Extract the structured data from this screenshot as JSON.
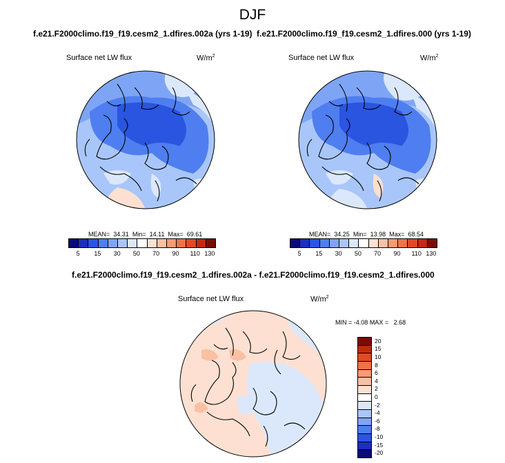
{
  "figure": {
    "title": "DJF",
    "left_panel": {
      "case_title": "f.e21.F2000climo.f19_f19.cesm2_1.dfires.002a (yrs 1-19)",
      "variable": "Surface net LW flux",
      "units": "W/m",
      "units_sup": "2",
      "stats": {
        "mean_label": "MEAN=",
        "mean": "34.31",
        "min_label": "Min=",
        "min": "14.11",
        "max_label": "Max=",
        "max": "69.61"
      }
    },
    "right_panel": {
      "case_title": "f.e21.F2000climo.f19_f19.cesm2_1.dfires.000 (yrs 1-19)",
      "variable": "Surface net LW flux",
      "units": "W/m",
      "units_sup": "2",
      "stats": {
        "mean_label": "MEAN=",
        "mean": "34.25",
        "min_label": "Min=",
        "min": "13.98",
        "max_label": "Max=",
        "max": "68.54"
      }
    },
    "diff_panel": {
      "case_title": "f.e21.F2000climo.f19_f19.cesm2_1.dfires.002a - f.e21.F2000climo.f19_f19.cesm2_1.dfires.000",
      "variable": "Surface net LW flux",
      "units": "W/m",
      "units_sup": "2",
      "stats": {
        "min_label": "MIN =",
        "min": "-4.08",
        "max_label": "MAX =",
        "max": "2.68"
      }
    }
  },
  "colorbar_main": {
    "colors": [
      "#0a0a78",
      "#1a2fbd",
      "#2a55e0",
      "#4f7ef0",
      "#7ea5f5",
      "#a9c6fa",
      "#dbe8fc",
      "#ffffff",
      "#fde0d2",
      "#fbc0a2",
      "#f89a72",
      "#f27248",
      "#e04a24",
      "#c02a10",
      "#7a0c04"
    ],
    "labels": [
      "5",
      "15",
      "30",
      "50",
      "70",
      "90",
      "110",
      "130"
    ]
  },
  "colorbar_diff": {
    "colors": [
      "#7a0c04",
      "#c02a10",
      "#e04a24",
      "#f27248",
      "#f89a72",
      "#fbc0a2",
      "#fde0d2",
      "#ffffff",
      "#dbe8fc",
      "#a9c6fa",
      "#7ea5f5",
      "#4f7ef0",
      "#2a55e0",
      "#1a2fbd",
      "#0a0a78"
    ],
    "labels": [
      "20",
      "15",
      "10",
      "8",
      "6",
      "4",
      "2",
      "0",
      "-2",
      "-4",
      "-6",
      "-8",
      "-10",
      "-15",
      "-20"
    ]
  }
}
